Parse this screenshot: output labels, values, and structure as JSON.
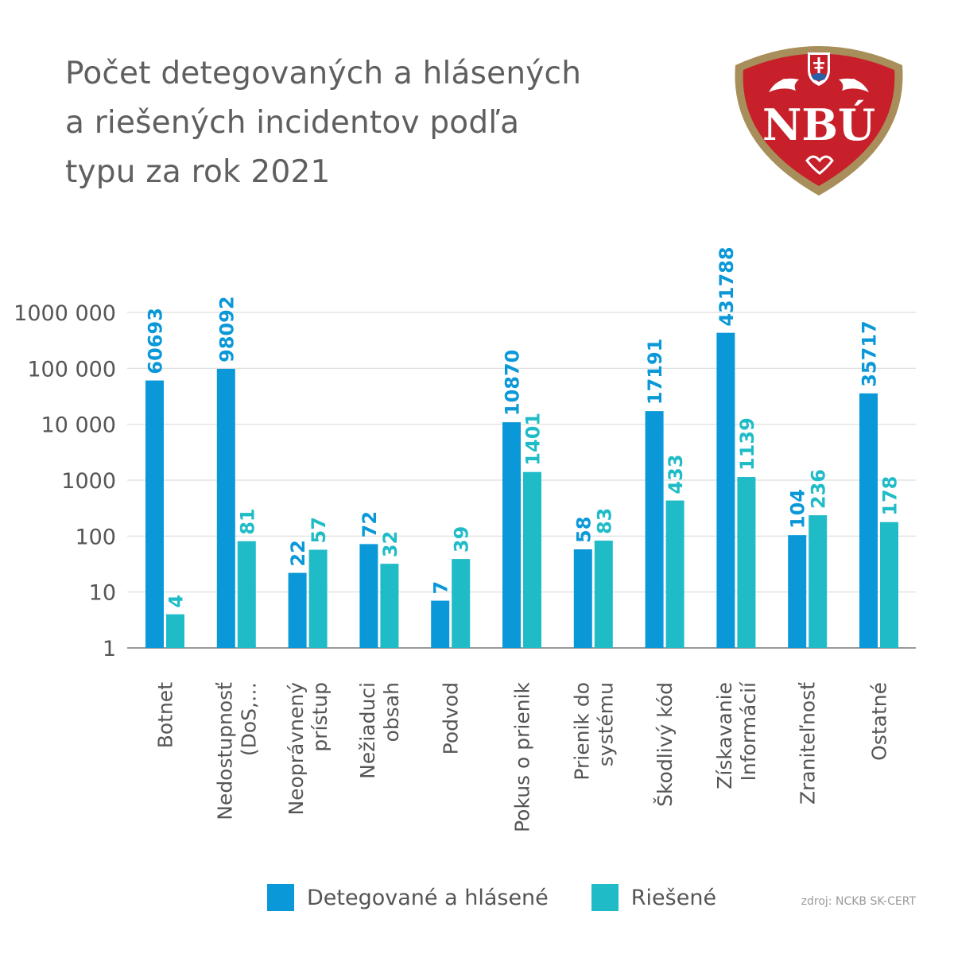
{
  "title_lines": [
    "Počet detegovaných a hlásených",
    "a riešených incidentov podľa",
    "typu za rok 2021"
  ],
  "logo": {
    "text": "NBÚ",
    "color": "#c8202a",
    "ring_color": "#a88e5a"
  },
  "source": "zdroj: NCKB SK-CERT",
  "colors": {
    "detected": "#0a98d8",
    "resolved": "#1fbcc8",
    "grid": "#dddddd",
    "axis": "#9a9a9a",
    "tick_text": "#555555"
  },
  "chart_data": {
    "type": "bar",
    "yscale": "log",
    "ylim": [
      1,
      1000000
    ],
    "y_ticks": [
      1,
      10,
      100,
      1000,
      10000,
      100000,
      1000000
    ],
    "y_tick_labels": [
      "1",
      "10",
      "100",
      "1000",
      "10 000",
      "100 000",
      "1000 000"
    ],
    "grid": true,
    "legend_position": "bottom",
    "categories": [
      [
        "Botnet"
      ],
      [
        "Nedostupnosť",
        "(DoS,…"
      ],
      [
        "Neoprávnený",
        "prístup"
      ],
      [
        "Nežiaduci",
        "obsah"
      ],
      [
        "Podvod"
      ],
      [
        "Pokus o prienik"
      ],
      [
        "Prienik do",
        "systému"
      ],
      [
        "Škodlivý kód"
      ],
      [
        "Získavanie",
        "Informácií"
      ],
      [
        "Zraniteľnosť"
      ],
      [
        "Ostatné"
      ]
    ],
    "series": [
      {
        "name": "Detegované a hlásené",
        "values": [
          60693,
          98092,
          22,
          72,
          7,
          10870,
          58,
          17191,
          431788,
          104,
          35717
        ],
        "labels": [
          "60693",
          "98092",
          "22",
          "72",
          "7",
          "10870",
          "58",
          "17191",
          "431788",
          "104",
          "35717"
        ]
      },
      {
        "name": "Riešené",
        "values": [
          4,
          81,
          57,
          32,
          39,
          1401,
          83,
          433,
          1139,
          236,
          178
        ],
        "labels": [
          "4",
          "81",
          "57",
          "32",
          "39",
          "1401",
          "83",
          "433",
          "1139",
          "236",
          "178"
        ]
      }
    ]
  }
}
